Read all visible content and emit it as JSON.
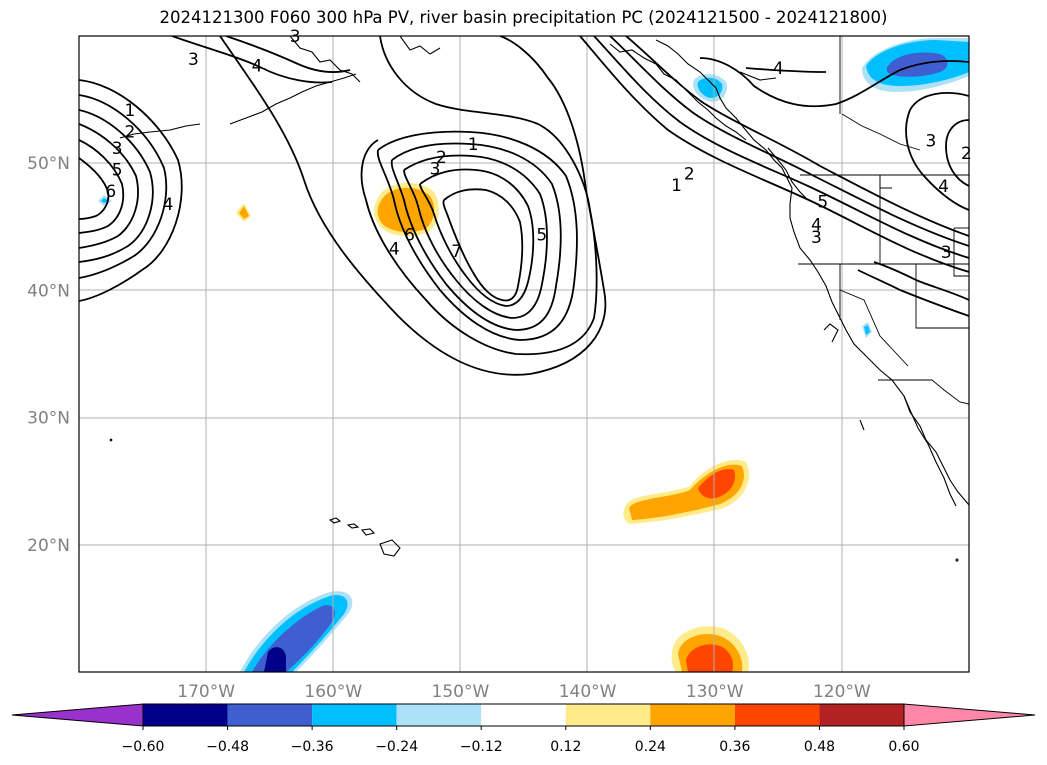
{
  "title": "2024121300 F060 300 hPa PV, river basin precipitation PC (2024121500 - 2024121800)",
  "map": {
    "lon_range": [
      -180,
      -110
    ],
    "lat_range": [
      10,
      60
    ],
    "lat_labels": [
      {
        "lat": 50,
        "text": "50°N"
      },
      {
        "lat": 40,
        "text": "40°N"
      },
      {
        "lat": 30,
        "text": "30°N"
      },
      {
        "lat": 20,
        "text": "20°N"
      }
    ],
    "lon_labels": [
      {
        "lon": -170,
        "text": "170°W"
      },
      {
        "lon": -160,
        "text": "160°W"
      },
      {
        "lon": -150,
        "text": "150°W"
      },
      {
        "lon": -140,
        "text": "140°W"
      },
      {
        "lon": -130,
        "text": "130°W"
      },
      {
        "lon": -120,
        "text": "120°W"
      }
    ],
    "contour_labels": [
      {
        "text": "1",
        "lon": -176,
        "lat": 54.2
      },
      {
        "text": "2",
        "lon": -176,
        "lat": 52.5
      },
      {
        "text": "3",
        "lon": -177,
        "lat": 51.2
      },
      {
        "text": "5",
        "lon": -177,
        "lat": 49.5
      },
      {
        "text": "6",
        "lon": -177.5,
        "lat": 47.8
      },
      {
        "text": "4",
        "lon": -173,
        "lat": 46.8
      },
      {
        "text": "3",
        "lon": -171,
        "lat": 58.2
      },
      {
        "text": "4",
        "lon": -166,
        "lat": 57.7
      },
      {
        "text": "3",
        "lon": -163,
        "lat": 60
      },
      {
        "text": "1",
        "lon": -149,
        "lat": 51.5
      },
      {
        "text": "2",
        "lon": -151.5,
        "lat": 50.5
      },
      {
        "text": "3",
        "lon": -152,
        "lat": 49.6
      },
      {
        "text": "6",
        "lon": -154,
        "lat": 44.4
      },
      {
        "text": "4",
        "lon": -155.2,
        "lat": 43.3
      },
      {
        "text": "7",
        "lon": -150.3,
        "lat": 43.1
      },
      {
        "text": "5",
        "lon": -143.6,
        "lat": 44.4
      },
      {
        "text": "2",
        "lon": -132,
        "lat": 49.2
      },
      {
        "text": "1",
        "lon": -133,
        "lat": 48.3
      },
      {
        "text": "4",
        "lon": -125,
        "lat": 57.5
      },
      {
        "text": "5",
        "lon": -121.5,
        "lat": 47
      },
      {
        "text": "4",
        "lon": -122,
        "lat": 45.2
      },
      {
        "text": "3",
        "lon": -122,
        "lat": 44.2
      },
      {
        "text": "3",
        "lon": -113,
        "lat": 51.8
      },
      {
        "text": "2",
        "lon": -110.2,
        "lat": 50.8
      },
      {
        "text": "4",
        "lon": -112,
        "lat": 48.2
      },
      {
        "text": "3",
        "lon": -111.8,
        "lat": 43
      }
    ]
  },
  "colorbar": {
    "levels": [
      "−0.60",
      "−0.48",
      "−0.36",
      "−0.24",
      "−0.12",
      "0.12",
      "0.24",
      "0.36",
      "0.48",
      "0.60"
    ],
    "colors": {
      "under": "#9932CC",
      "bins": [
        "#00008B",
        "#3F5FD0",
        "#00BFFF",
        "#ADE1F7",
        "#FFFFFF",
        "#FFEB8A",
        "#FFA500",
        "#FF4500",
        "#B22222"
      ],
      "over": "#FF88AA"
    }
  }
}
